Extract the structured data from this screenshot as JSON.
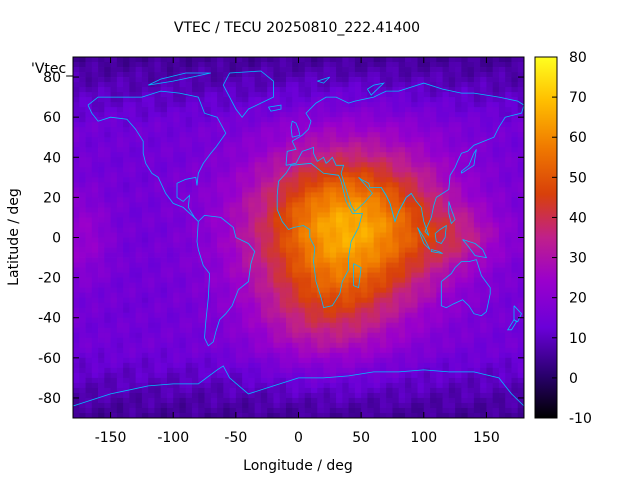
{
  "chart_data": {
    "type": "heatmap",
    "title": "VTEC / TECU 20250810_222.41400",
    "xlabel": "Longitude / deg",
    "ylabel": "Latitude / deg",
    "xlim": [
      -180,
      180
    ],
    "ylim": [
      -90,
      90
    ],
    "x_ticks": [
      "-150",
      "-100",
      "-50",
      "0",
      "50",
      "100",
      "150"
    ],
    "x_tick_values": [
      -150,
      -100,
      -50,
      0,
      50,
      100,
      150
    ],
    "y_ticks": [
      "80",
      "60",
      "40",
      "20",
      "0",
      "-20",
      "-40",
      "-60",
      "-80"
    ],
    "y_tick_values": [
      80,
      60,
      40,
      20,
      0,
      -20,
      -40,
      -60,
      -80
    ],
    "colorbar": {
      "range": [
        -10,
        80
      ],
      "ticks": [
        "80",
        "70",
        "60",
        "50",
        "40",
        "30",
        "20",
        "10",
        "0",
        "-10"
      ],
      "tick_values": [
        80,
        70,
        60,
        50,
        40,
        30,
        20,
        10,
        0,
        -10
      ],
      "colormap": "black-purple-red-orange-yellow"
    },
    "legend_label": "'Vtec_",
    "legend_position": "top-left",
    "grid": false,
    "coastline_color": "#00bfff",
    "field": {
      "background_tecu": 14,
      "peak_tecu": 66,
      "peak_center": {
        "lon": 40,
        "lat": 5
      },
      "enhanced_region": {
        "lon_range": [
          -50,
          150
        ],
        "lat_range": [
          -60,
          40
        ]
      },
      "high_latitude_min_tecu": 5
    }
  }
}
